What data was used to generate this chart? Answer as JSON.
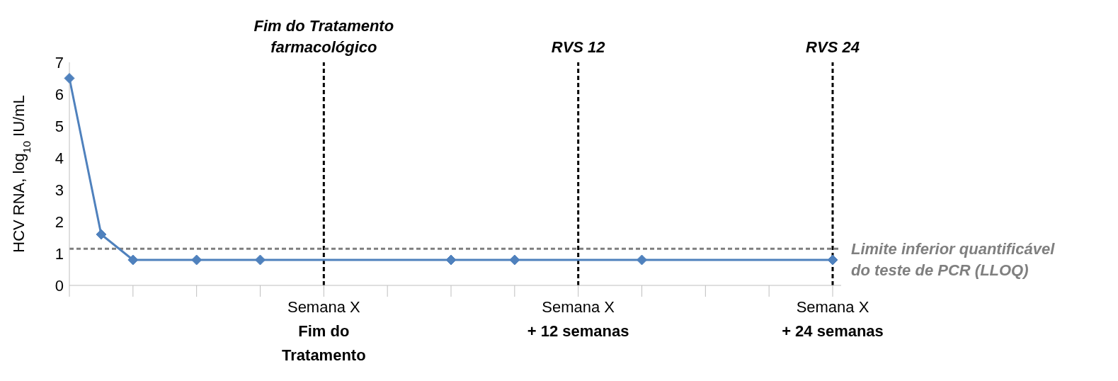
{
  "chart_data": {
    "type": "line",
    "ylabel": "HCV RNA, log$_{10}$ IU/mL",
    "categories": [
      null,
      null,
      null,
      null,
      null,
      null,
      null,
      null,
      "Semana X\nFim do\nTratamento",
      null,
      null,
      null,
      null,
      null,
      null,
      null,
      "Semana X\n+ 12 semanas",
      null,
      null,
      null,
      null,
      null,
      null,
      null,
      "Semana X\n+ 24 semanas"
    ],
    "series": [
      {
        "color": "#4f81bd",
        "values": [
          6.5,
          1.6,
          0.8,
          null,
          0.8,
          null,
          0.8,
          null,
          null,
          null,
          null,
          null,
          0.8,
          null,
          0.8,
          null,
          null,
          null,
          0.8,
          null,
          null,
          null,
          null,
          null,
          0.8
        ]
      }
    ],
    "ylim": [
      0,
      7
    ],
    "yticks": [
      0,
      1,
      2,
      3,
      4,
      5,
      6,
      7
    ],
    "ref_lines": [
      {
        "axis": "x",
        "value": "Semana X\nFim do\nTratamento",
        "label": "Fim do Tratamento\nfarmacológico",
        "color": "#000000",
        "line_style": "dashed"
      },
      {
        "axis": "x",
        "value": "Semana X\n+ 12 semanas",
        "label": "RVS 12",
        "color": "#000000",
        "line_style": "dashed"
      },
      {
        "axis": "x",
        "value": "Semana X\n+ 24 semanas",
        "label": "RVS 24",
        "color": "#000000",
        "line_style": "dashed"
      },
      {
        "axis": "y",
        "value": 1.15,
        "label": "Limite inferior quantificável\ndo teste de PCR (LLOQ)",
        "color": "#7f7f7f",
        "line_style": "dashed"
      }
    ],
    "grid": false,
    "marker": "diamond",
    "line_style": "solid"
  }
}
